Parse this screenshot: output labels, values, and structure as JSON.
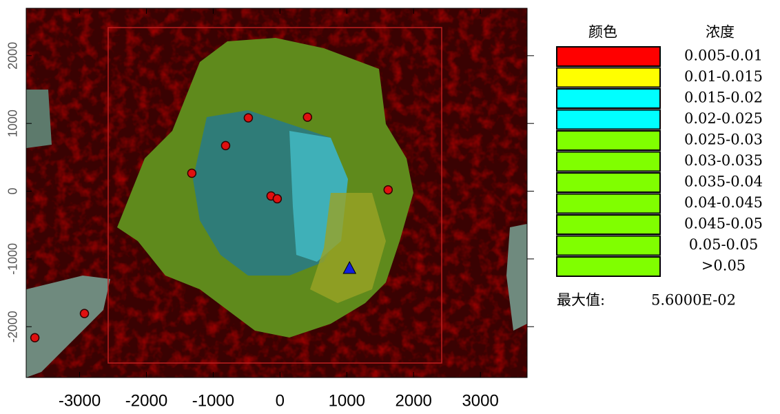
{
  "chart_data": {
    "type": "map",
    "xlim": [
      -3800,
      3700
    ],
    "ylim": [
      -2750,
      2700
    ],
    "xticks": [
      -3000,
      -2000,
      -1000,
      0,
      1000,
      2000,
      3000
    ],
    "yticks": [
      -2000,
      -1000,
      0,
      1000,
      2000
    ],
    "legend": {
      "header": [
        "颜色",
        "浓度"
      ],
      "items": [
        {
          "color": "#ff0000",
          "label": "0.005-0.01"
        },
        {
          "color": "#ffff00",
          "label": "0.01-0.015"
        },
        {
          "color": "#00ffff",
          "label": "0.015-0.02"
        },
        {
          "color": "#00ffff",
          "label": "0.02-0.025"
        },
        {
          "color": "#80ff00",
          "label": "0.025-0.03"
        },
        {
          "color": "#80ff00",
          "label": "0.03-0.035"
        },
        {
          "color": "#80ff00",
          "label": "0.035-0.04"
        },
        {
          "color": "#80ff00",
          "label": "0.04-0.045"
        },
        {
          "color": "#80ff00",
          "label": "0.045-0.05"
        },
        {
          "color": "#80ff00",
          "label": "0.05-0.05"
        },
        {
          "color": "#80ff00",
          "label": ">0.05"
        }
      ]
    },
    "max_label": "最大值:",
    "max_value": "5.6000E-02",
    "sources": {
      "color": "#e01010",
      "x": [
        -474,
        412,
        -814,
        -1320,
        -134,
        -41,
        1619,
        -2928,
        -3670
      ],
      "y": [
        1082,
        1092,
        673,
        265,
        -71,
        -112,
        20,
        -1806,
        -2163
      ]
    },
    "receptor": {
      "color": "#1020e0",
      "x": [
        1041
      ],
      "y": [
        -1143
      ]
    }
  }
}
